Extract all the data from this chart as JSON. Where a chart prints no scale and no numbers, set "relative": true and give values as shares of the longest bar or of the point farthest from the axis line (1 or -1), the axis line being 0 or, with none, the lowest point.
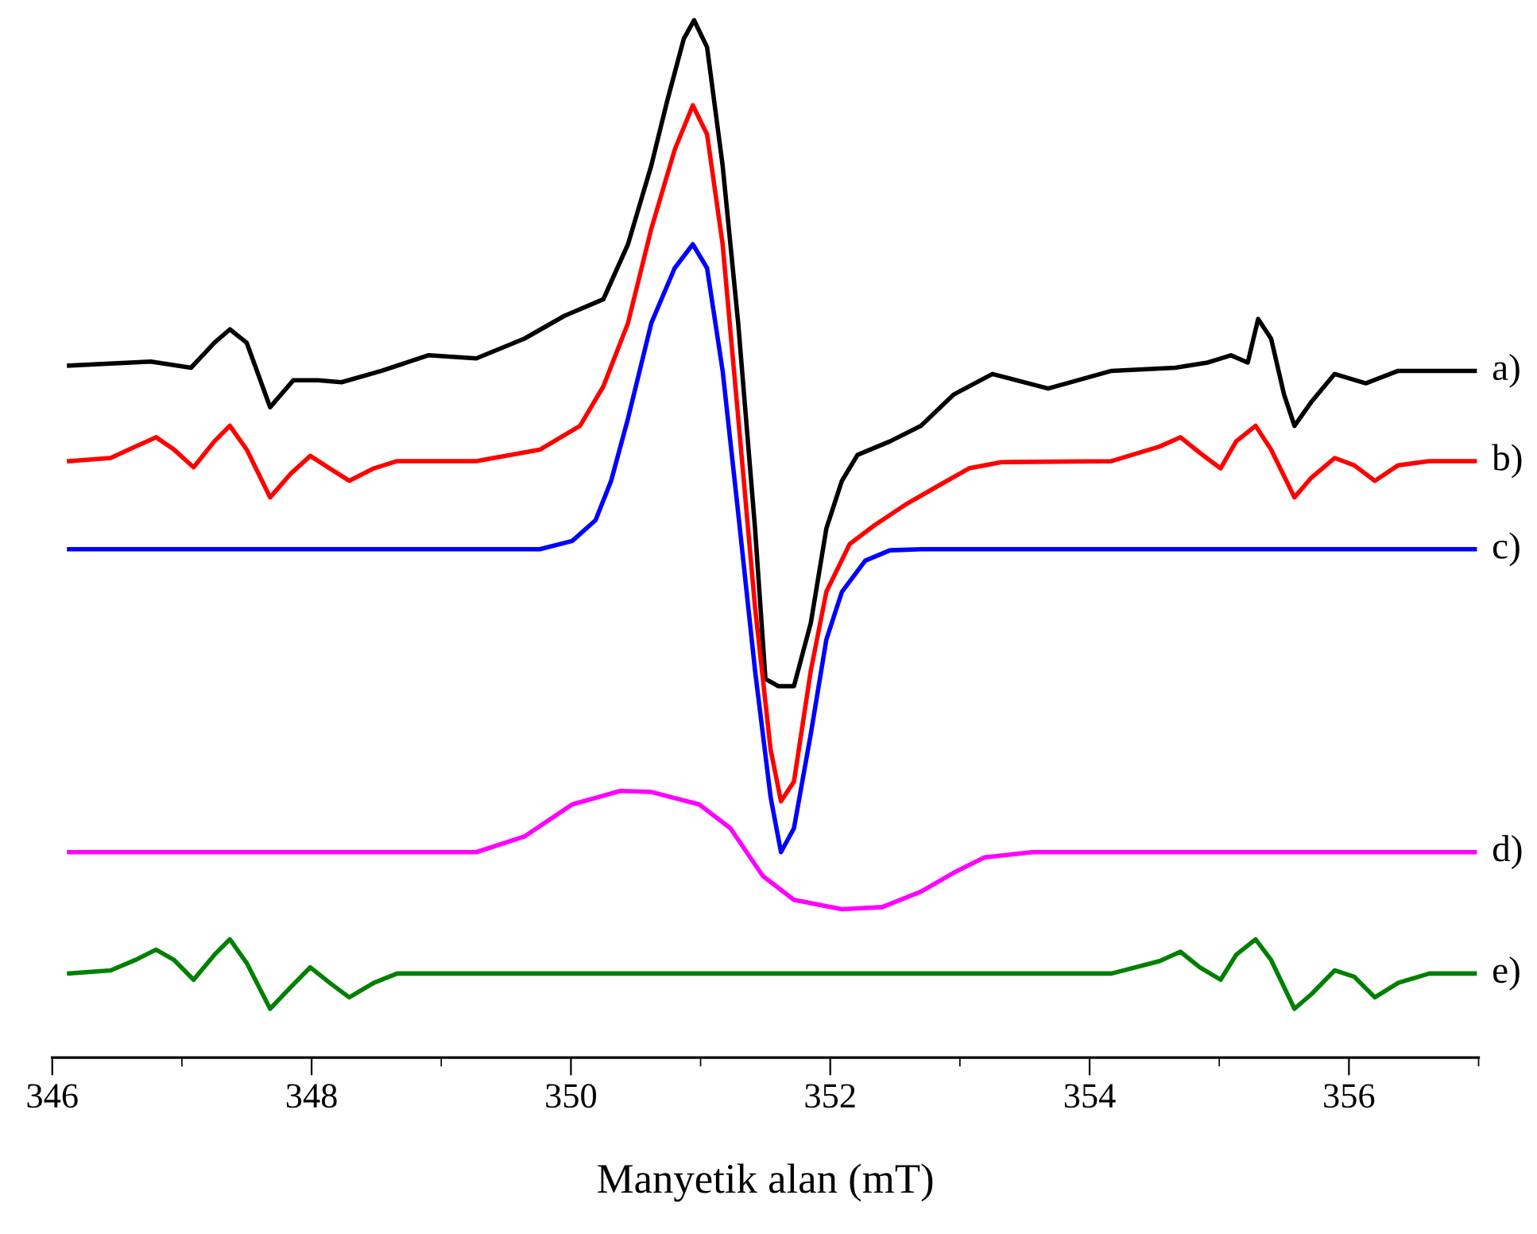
{
  "chart_data": {
    "type": "line",
    "relative": true,
    "xlabel": "Manyetik alan (mT)",
    "xlim": [
      346,
      357
    ],
    "xticks": [
      346,
      {
        "value": 347,
        "label": null
      },
      348,
      {
        "value": 349,
        "label": null
      },
      350,
      {
        "value": 351,
        "label": null
      },
      352,
      {
        "value": 353,
        "label": null
      },
      354,
      {
        "value": 355,
        "label": null
      },
      356,
      {
        "value": 357,
        "label": null
      }
    ],
    "grid": false,
    "legend": false,
    "marker": "none",
    "line_style": "solid",
    "series": [
      {
        "name": "a)",
        "color": "#000000",
        "x": [
          346.13,
          346.76,
          347.07,
          347.25,
          347.37,
          347.5,
          347.68,
          347.86,
          348.05,
          348.23,
          348.54,
          348.9,
          349.27,
          349.64,
          349.95,
          350.25,
          350.44,
          350.62,
          350.74,
          350.87,
          350.95,
          351.05,
          351.17,
          351.29,
          351.42,
          351.5,
          351.6,
          351.72,
          351.85,
          351.97,
          352.09,
          352.21,
          352.46,
          352.7,
          352.95,
          353.25,
          353.68,
          354.17,
          354.66,
          354.91,
          355.09,
          355.22,
          355.3,
          355.4,
          355.5,
          355.58,
          355.71,
          355.89,
          356.13,
          356.38,
          356.97
        ],
        "values": [
          0.667,
          0.671,
          0.665,
          0.689,
          0.702,
          0.689,
          0.627,
          0.653,
          0.653,
          0.651,
          0.662,
          0.677,
          0.674,
          0.693,
          0.715,
          0.731,
          0.784,
          0.86,
          0.921,
          0.982,
          1.0,
          0.974,
          0.86,
          0.708,
          0.51,
          0.365,
          0.358,
          0.358,
          0.419,
          0.51,
          0.556,
          0.581,
          0.594,
          0.609,
          0.639,
          0.659,
          0.645,
          0.662,
          0.665,
          0.67,
          0.677,
          0.67,
          0.712,
          0.693,
          0.639,
          0.609,
          0.632,
          0.659,
          0.65,
          0.662,
          0.662
        ]
      },
      {
        "name": "b)",
        "color": "#ff0000",
        "x": [
          346.13,
          346.45,
          346.64,
          346.8,
          346.94,
          347.09,
          347.25,
          347.37,
          347.5,
          347.68,
          347.84,
          347.99,
          348.14,
          348.29,
          348.48,
          348.66,
          349.27,
          349.76,
          350.07,
          350.25,
          350.44,
          350.62,
          350.8,
          350.94,
          351.05,
          351.17,
          351.29,
          351.42,
          351.54,
          351.62,
          351.72,
          351.85,
          351.97,
          352.15,
          352.34,
          352.58,
          352.83,
          353.07,
          353.32,
          354.17,
          354.54,
          354.7,
          354.85,
          355.01,
          355.13,
          355.28,
          355.4,
          355.58,
          355.71,
          355.89,
          356.04,
          356.2,
          356.38,
          356.62,
          356.97
        ],
        "values": [
          0.575,
          0.578,
          0.589,
          0.598,
          0.586,
          0.569,
          0.594,
          0.609,
          0.586,
          0.54,
          0.563,
          0.58,
          0.568,
          0.556,
          0.568,
          0.575,
          0.575,
          0.586,
          0.609,
          0.647,
          0.708,
          0.799,
          0.875,
          0.918,
          0.89,
          0.784,
          0.617,
          0.434,
          0.297,
          0.247,
          0.266,
          0.373,
          0.449,
          0.495,
          0.513,
          0.533,
          0.551,
          0.568,
          0.574,
          0.575,
          0.589,
          0.598,
          0.583,
          0.568,
          0.594,
          0.609,
          0.586,
          0.54,
          0.559,
          0.578,
          0.571,
          0.556,
          0.571,
          0.575,
          0.575
        ]
      },
      {
        "name": "c)",
        "color": "#0000ff",
        "x": [
          346.13,
          349.76,
          350.01,
          350.19,
          350.31,
          350.44,
          350.62,
          350.8,
          350.94,
          351.05,
          351.17,
          351.29,
          351.42,
          351.54,
          351.62,
          351.72,
          351.85,
          351.97,
          352.09,
          352.27,
          352.46,
          352.7,
          356.97
        ],
        "values": [
          0.49,
          0.49,
          0.498,
          0.518,
          0.556,
          0.616,
          0.708,
          0.761,
          0.784,
          0.761,
          0.662,
          0.525,
          0.373,
          0.251,
          0.198,
          0.221,
          0.312,
          0.403,
          0.449,
          0.479,
          0.489,
          0.49,
          0.49
        ]
      },
      {
        "name": "d)",
        "color": "#ff00ff",
        "x": [
          346.13,
          349.27,
          349.64,
          350.01,
          350.38,
          350.62,
          350.99,
          351.23,
          351.48,
          351.72,
          352.09,
          352.4,
          352.7,
          352.95,
          353.19,
          353.56,
          356.97
        ],
        "values": [
          0.198,
          0.198,
          0.213,
          0.244,
          0.257,
          0.256,
          0.244,
          0.221,
          0.175,
          0.152,
          0.143,
          0.145,
          0.16,
          0.178,
          0.193,
          0.198,
          0.198
        ]
      },
      {
        "name": "e)",
        "color": "#008000",
        "x": [
          346.13,
          346.45,
          346.64,
          346.8,
          346.94,
          347.09,
          347.25,
          347.37,
          347.5,
          347.68,
          347.84,
          347.99,
          348.14,
          348.29,
          348.48,
          348.66,
          354.17,
          354.54,
          354.7,
          354.85,
          355.01,
          355.13,
          355.28,
          355.4,
          355.58,
          355.71,
          355.89,
          356.04,
          356.2,
          356.38,
          356.62,
          356.97
        ],
        "values": [
          0.081,
          0.084,
          0.094,
          0.104,
          0.094,
          0.075,
          0.099,
          0.114,
          0.091,
          0.047,
          0.068,
          0.087,
          0.072,
          0.058,
          0.072,
          0.081,
          0.081,
          0.093,
          0.102,
          0.087,
          0.075,
          0.099,
          0.114,
          0.094,
          0.047,
          0.061,
          0.084,
          0.078,
          0.058,
          0.072,
          0.081,
          0.081
        ]
      }
    ]
  }
}
